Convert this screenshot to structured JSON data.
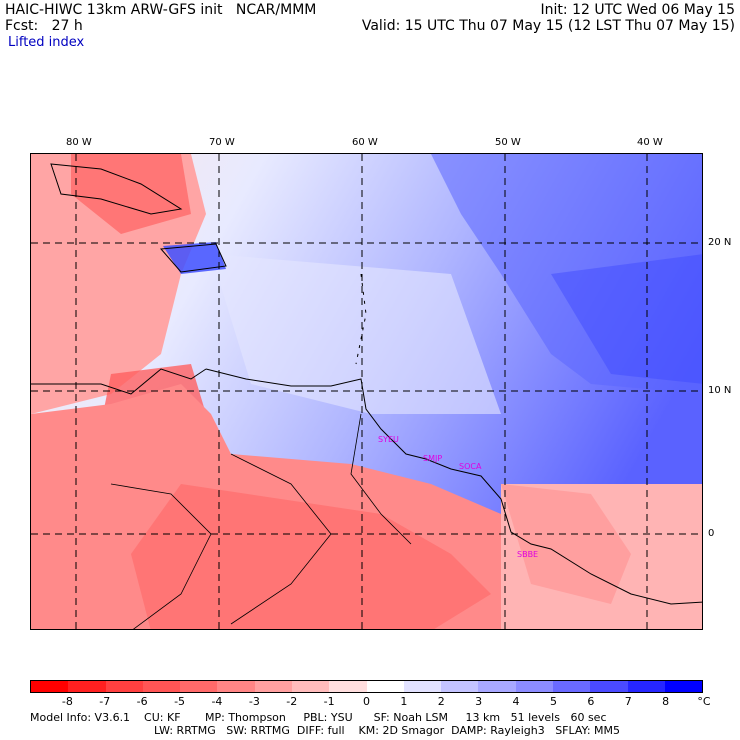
{
  "header": {
    "title": "HAIC-HIWC 13km ARW-GFS init   NCAR/MMM",
    "init": "Init: 12 UTC Wed 06 May 15",
    "fcst": "Fcst:   27 h",
    "valid": "Valid: 15 UTC Thu 07 May 15 (12 LST Thu 07 May 15)",
    "field": "Lifted index"
  },
  "map": {
    "lon_labels": [
      "80 W",
      "70 W",
      "60 W",
      "50 W",
      "40 W"
    ],
    "lat_labels": [
      "20 N",
      "10 N",
      "0"
    ],
    "stations": [
      "SYEU",
      "SMJP",
      "SOCA",
      "SBBE"
    ]
  },
  "colorbar": {
    "ticks": [
      "-8",
      "-7",
      "-6",
      "-5",
      "-4",
      "-3",
      "-2",
      "-1",
      "0",
      "1",
      "2",
      "3",
      "4",
      "5",
      "6",
      "7",
      "8"
    ],
    "unit": "°C",
    "colors": [
      "#ff0000",
      "#ff2020",
      "#ff4040",
      "#ff5555",
      "#ff6a6a",
      "#ff8585",
      "#ffa0a0",
      "#ffbcbc",
      "#ffdede",
      "#ffffff",
      "#e2e2ff",
      "#c4c4ff",
      "#a8a8ff",
      "#8c8cff",
      "#6a6aff",
      "#4a4aff",
      "#2626ff",
      "#0000ff"
    ]
  },
  "footer": {
    "line1": "Model Info: V3.6.1    CU: KF       MP: Thompson     PBL: YSU      SF: Noah LSM     13 km   51 levels   60 sec",
    "line2": "LW: RRTMG   SW: RRTMG  DIFF: full    KM: 2D Smagor  DAMP: Rayleigh3   SFLAY: MM5"
  }
}
